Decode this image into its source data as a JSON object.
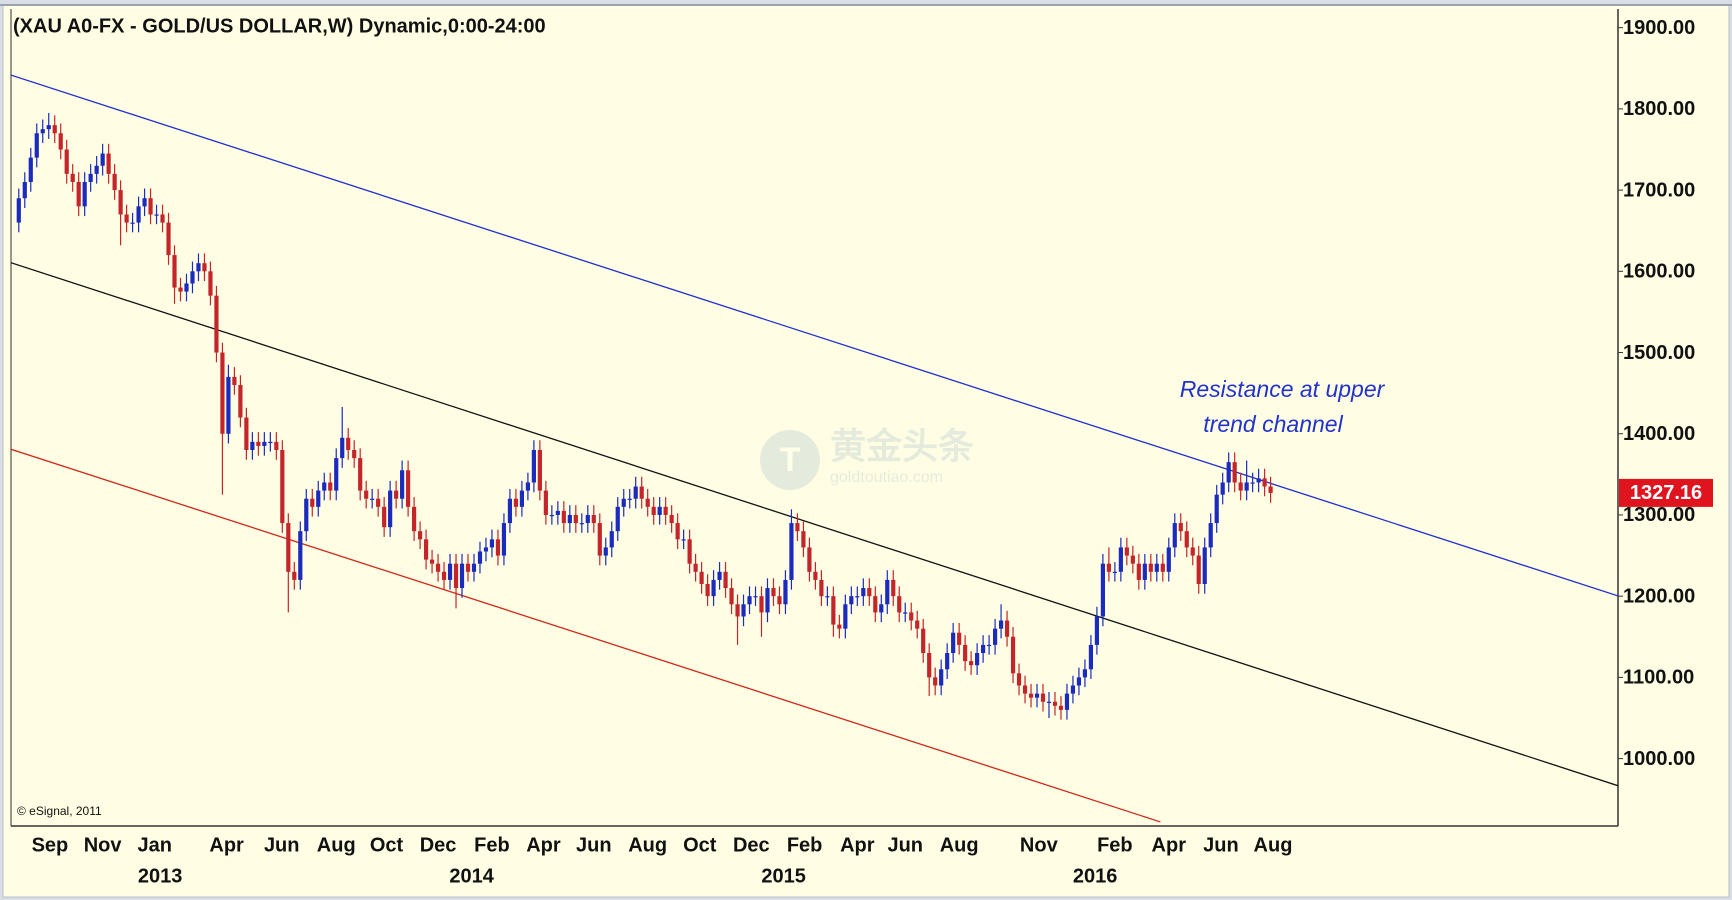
{
  "chart_data": {
    "type": "candlestick",
    "title": "(XAU A0-FX - GOLD/US DOLLAR,W) Dynamic,0:00-24:00",
    "credit": "© eSignal, 2011",
    "annotation": [
      "Resistance at upper",
      "trend channel"
    ],
    "annotation_color": "#2233cc",
    "watermark": {
      "name": "黄金头条",
      "url": "goldtoutiao.com"
    },
    "up_color": "#1a2bbd",
    "down_color": "#c4252b",
    "last_price_color": "#e0141e",
    "xlim": [
      -1.3,
      267
    ],
    "ylim": [
      917,
      1923
    ],
    "yticks": [
      {
        "value": 1900,
        "label": "1900.00"
      },
      {
        "value": 1800,
        "label": "1800.00"
      },
      {
        "value": 1700,
        "label": "1700.00"
      },
      {
        "value": 1600,
        "label": "1600.00"
      },
      {
        "value": 1500,
        "label": "1500.00"
      },
      {
        "value": 1400,
        "label": "1400.00"
      },
      {
        "value": 1300,
        "label": "1300.00"
      },
      {
        "value": 1200,
        "label": "1200.00"
      },
      {
        "value": 1100,
        "label": "1100.00"
      },
      {
        "value": 1000,
        "label": "1000.00"
      }
    ],
    "xticks": [
      {
        "value": 5.2,
        "label": "Sep"
      },
      {
        "value": 14,
        "label": "Nov"
      },
      {
        "value": 22.7,
        "label": "Jan"
      },
      {
        "value": 34.7,
        "label": "Apr"
      },
      {
        "value": 43.9,
        "label": "Jun"
      },
      {
        "value": 53,
        "label": "Aug"
      },
      {
        "value": 61.4,
        "label": "Oct"
      },
      {
        "value": 70,
        "label": "Dec"
      },
      {
        "value": 79,
        "label": "Feb"
      },
      {
        "value": 87.6,
        "label": "Apr"
      },
      {
        "value": 96,
        "label": "Jun"
      },
      {
        "value": 105,
        "label": "Aug"
      },
      {
        "value": 113.7,
        "label": "Oct"
      },
      {
        "value": 122.3,
        "label": "Dec"
      },
      {
        "value": 131.2,
        "label": "Feb"
      },
      {
        "value": 140,
        "label": "Apr"
      },
      {
        "value": 148,
        "label": "Jun"
      },
      {
        "value": 157,
        "label": "Aug"
      },
      {
        "value": 170.3,
        "label": "Nov"
      },
      {
        "value": 183,
        "label": "Feb"
      },
      {
        "value": 192,
        "label": "Apr"
      },
      {
        "value": 200.7,
        "label": "Jun"
      },
      {
        "value": 209.4,
        "label": "Aug"
      }
    ],
    "year_labels": [
      {
        "value": 23.6,
        "label": "2013"
      },
      {
        "value": 75.6,
        "label": "2014"
      },
      {
        "value": 127.7,
        "label": "2015"
      },
      {
        "value": 179.7,
        "label": "2016"
      }
    ],
    "lines": [
      {
        "color": "#1f2fd0",
        "x": [
          -1.3,
          267
        ],
        "y": [
          1841.6,
          1200.3
        ]
      },
      {
        "color": "#111111",
        "x": [
          -1.3,
          267
        ],
        "y": [
          1610.6,
          966.6
        ]
      },
      {
        "color": "#d0281c",
        "x": [
          -1.3,
          190.6
        ],
        "y": [
          1380.9,
          922
        ]
      }
    ],
    "open": [
      1660,
      1690,
      1710,
      1740,
      1770,
      1775,
      1780,
      1770,
      1750,
      1720,
      1710,
      1680,
      1710,
      1720,
      1730,
      1745,
      1720,
      1700,
      1670,
      1660,
      1660,
      1680,
      1690,
      1670,
      1670,
      1660,
      1620,
      1580,
      1575,
      1585,
      1600,
      1610,
      1600,
      1570,
      1500,
      1400,
      1470,
      1460,
      1420,
      1380,
      1390,
      1385,
      1390,
      1390,
      1380,
      1290,
      1230,
      1220,
      1280,
      1320,
      1310,
      1330,
      1340,
      1330,
      1370,
      1395,
      1380,
      1370,
      1330,
      1320,
      1320,
      1310,
      1285,
      1330,
      1320,
      1355,
      1310,
      1280,
      1270,
      1245,
      1240,
      1230,
      1220,
      1240,
      1210,
      1240,
      1230,
      1240,
      1255,
      1260,
      1270,
      1250,
      1290,
      1320,
      1310,
      1330,
      1340,
      1380,
      1330,
      1300,
      1300,
      1305,
      1290,
      1300,
      1290,
      1290,
      1300,
      1290,
      1250,
      1260,
      1280,
      1310,
      1320,
      1320,
      1335,
      1320,
      1310,
      1300,
      1310,
      1300,
      1290,
      1270,
      1270,
      1240,
      1230,
      1215,
      1200,
      1220,
      1230,
      1210,
      1190,
      1175,
      1190,
      1200,
      1200,
      1180,
      1210,
      1200,
      1190,
      1220,
      1290,
      1280,
      1260,
      1230,
      1220,
      1200,
      1200,
      1165,
      1160,
      1190,
      1200,
      1200,
      1210,
      1200,
      1180,
      1190,
      1220,
      1200,
      1180,
      1180,
      1170,
      1160,
      1130,
      1100,
      1090,
      1110,
      1130,
      1155,
      1140,
      1120,
      1115,
      1130,
      1140,
      1140,
      1160,
      1170,
      1150,
      1105,
      1090,
      1080,
      1075,
      1080,
      1070,
      1070,
      1065,
      1060,
      1080,
      1090,
      1100,
      1110,
      1140,
      1175,
      1240,
      1230,
      1230,
      1260,
      1250,
      1240,
      1220,
      1240,
      1230,
      1240,
      1230,
      1260,
      1290,
      1280,
      1260,
      1250,
      1215,
      1260,
      1290,
      1325,
      1340,
      1365,
      1340,
      1330,
      1340,
      1340,
      1345,
      1335
    ],
    "high": [
      1702,
      1722,
      1752,
      1782,
      1787,
      1795,
      1792,
      1782,
      1762,
      1732,
      1722,
      1722,
      1732,
      1742,
      1757,
      1757,
      1732,
      1712,
      1682,
      1672,
      1692,
      1702,
      1702,
      1682,
      1682,
      1672,
      1632,
      1592,
      1597,
      1612,
      1622,
      1622,
      1612,
      1582,
      1512,
      1485,
      1482,
      1472,
      1432,
      1402,
      1402,
      1402,
      1402,
      1402,
      1392,
      1302,
      1242,
      1292,
      1332,
      1332,
      1342,
      1352,
      1352,
      1382,
      1433,
      1407,
      1392,
      1382,
      1342,
      1332,
      1332,
      1322,
      1342,
      1342,
      1367,
      1367,
      1322,
      1292,
      1282,
      1257,
      1252,
      1242,
      1252,
      1252,
      1252,
      1252,
      1252,
      1267,
      1272,
      1282,
      1282,
      1302,
      1332,
      1332,
      1342,
      1352,
      1392,
      1392,
      1342,
      1312,
      1317,
      1317,
      1312,
      1312,
      1302,
      1312,
      1312,
      1302,
      1272,
      1292,
      1322,
      1332,
      1332,
      1347,
      1347,
      1332,
      1322,
      1322,
      1322,
      1312,
      1302,
      1282,
      1282,
      1252,
      1242,
      1227,
      1232,
      1242,
      1242,
      1222,
      1202,
      1202,
      1212,
      1212,
      1212,
      1222,
      1222,
      1212,
      1232,
      1307,
      1302,
      1292,
      1272,
      1242,
      1232,
      1212,
      1212,
      1177,
      1202,
      1212,
      1212,
      1222,
      1222,
      1212,
      1202,
      1232,
      1232,
      1212,
      1192,
      1192,
      1182,
      1172,
      1142,
      1112,
      1122,
      1142,
      1167,
      1167,
      1152,
      1132,
      1142,
      1152,
      1152,
      1172,
      1190,
      1182,
      1162,
      1117,
      1102,
      1092,
      1092,
      1092,
      1082,
      1082,
      1077,
      1092,
      1102,
      1112,
      1122,
      1152,
      1187,
      1252,
      1260,
      1242,
      1272,
      1272,
      1262,
      1252,
      1252,
      1252,
      1252,
      1252,
      1272,
      1302,
      1302,
      1292,
      1272,
      1262,
      1272,
      1302,
      1337,
      1352,
      1377,
      1377,
      1352,
      1367,
      1352,
      1357,
      1357,
      1347
    ],
    "low": [
      1648,
      1678,
      1698,
      1728,
      1758,
      1763,
      1758,
      1738,
      1708,
      1698,
      1668,
      1668,
      1698,
      1708,
      1718,
      1708,
      1688,
      1632,
      1648,
      1648,
      1648,
      1668,
      1658,
      1658,
      1648,
      1608,
      1560,
      1563,
      1563,
      1573,
      1588,
      1588,
      1558,
      1488,
      1325,
      1388,
      1448,
      1408,
      1368,
      1368,
      1373,
      1373,
      1378,
      1368,
      1278,
      1180,
      1208,
      1208,
      1268,
      1298,
      1298,
      1318,
      1318,
      1318,
      1358,
      1368,
      1358,
      1318,
      1308,
      1308,
      1298,
      1273,
      1273,
      1308,
      1308,
      1298,
      1268,
      1258,
      1233,
      1228,
      1218,
      1208,
      1208,
      1185,
      1198,
      1218,
      1218,
      1228,
      1243,
      1248,
      1238,
      1238,
      1278,
      1298,
      1298,
      1318,
      1328,
      1318,
      1288,
      1288,
      1288,
      1278,
      1278,
      1278,
      1278,
      1278,
      1278,
      1238,
      1238,
      1248,
      1268,
      1298,
      1308,
      1308,
      1308,
      1298,
      1288,
      1288,
      1288,
      1278,
      1258,
      1258,
      1228,
      1218,
      1203,
      1188,
      1188,
      1208,
      1198,
      1178,
      1140,
      1163,
      1178,
      1188,
      1150,
      1168,
      1188,
      1178,
      1178,
      1208,
      1268,
      1248,
      1218,
      1208,
      1188,
      1188,
      1150,
      1148,
      1148,
      1178,
      1188,
      1188,
      1188,
      1168,
      1168,
      1178,
      1188,
      1168,
      1168,
      1158,
      1148,
      1118,
      1077,
      1078,
      1078,
      1098,
      1118,
      1128,
      1108,
      1103,
      1103,
      1118,
      1128,
      1128,
      1148,
      1138,
      1093,
      1078,
      1068,
      1063,
      1063,
      1058,
      1050,
      1053,
      1048,
      1048,
      1068,
      1078,
      1088,
      1098,
      1128,
      1163,
      1218,
      1218,
      1218,
      1238,
      1228,
      1208,
      1208,
      1218,
      1218,
      1218,
      1218,
      1248,
      1268,
      1248,
      1238,
      1203,
      1203,
      1248,
      1278,
      1313,
      1328,
      1328,
      1318,
      1318,
      1328,
      1328,
      1323,
      1315
    ],
    "close": [
      1690,
      1710,
      1740,
      1770,
      1775,
      1780,
      1770,
      1750,
      1720,
      1710,
      1680,
      1710,
      1720,
      1730,
      1745,
      1720,
      1700,
      1670,
      1660,
      1660,
      1680,
      1690,
      1670,
      1670,
      1660,
      1620,
      1580,
      1575,
      1585,
      1600,
      1610,
      1600,
      1570,
      1500,
      1400,
      1470,
      1460,
      1420,
      1380,
      1390,
      1385,
      1390,
      1390,
      1380,
      1290,
      1230,
      1220,
      1280,
      1320,
      1310,
      1330,
      1340,
      1330,
      1370,
      1395,
      1380,
      1370,
      1330,
      1320,
      1320,
      1310,
      1285,
      1330,
      1320,
      1355,
      1310,
      1280,
      1270,
      1245,
      1240,
      1230,
      1220,
      1240,
      1210,
      1240,
      1230,
      1240,
      1255,
      1260,
      1270,
      1250,
      1290,
      1320,
      1310,
      1330,
      1340,
      1380,
      1330,
      1300,
      1300,
      1305,
      1290,
      1300,
      1290,
      1290,
      1300,
      1290,
      1250,
      1260,
      1280,
      1310,
      1320,
      1320,
      1335,
      1320,
      1310,
      1300,
      1310,
      1300,
      1290,
      1270,
      1270,
      1240,
      1230,
      1215,
      1200,
      1220,
      1230,
      1210,
      1190,
      1175,
      1190,
      1200,
      1200,
      1180,
      1210,
      1200,
      1190,
      1220,
      1290,
      1280,
      1260,
      1230,
      1220,
      1200,
      1200,
      1165,
      1160,
      1190,
      1200,
      1200,
      1210,
      1200,
      1180,
      1190,
      1220,
      1200,
      1180,
      1180,
      1170,
      1160,
      1130,
      1100,
      1090,
      1110,
      1130,
      1155,
      1140,
      1120,
      1115,
      1130,
      1140,
      1140,
      1160,
      1170,
      1150,
      1105,
      1090,
      1080,
      1075,
      1080,
      1070,
      1070,
      1065,
      1060,
      1080,
      1090,
      1100,
      1110,
      1140,
      1175,
      1240,
      1230,
      1230,
      1260,
      1250,
      1240,
      1220,
      1240,
      1230,
      1240,
      1230,
      1260,
      1290,
      1280,
      1260,
      1250,
      1215,
      1260,
      1290,
      1325,
      1340,
      1365,
      1340,
      1330,
      1340,
      1340,
      1345,
      1335,
      1327.16
    ]
  }
}
